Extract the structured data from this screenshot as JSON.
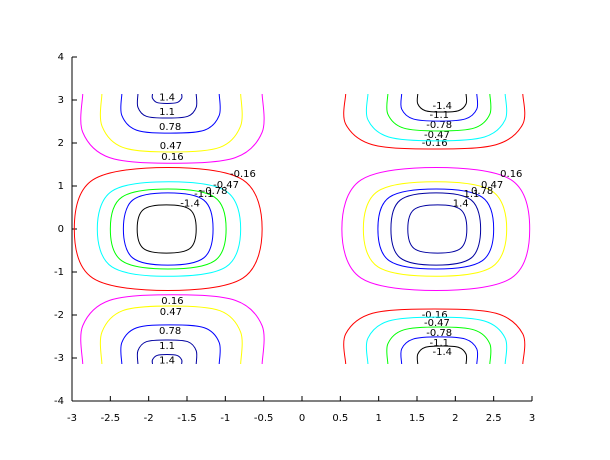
{
  "chart_data": {
    "type": "contour",
    "xlim": [
      -3,
      3
    ],
    "xticks": [
      -3,
      -2.5,
      -2,
      -1.5,
      -1,
      -0.5,
      0,
      0.5,
      1,
      1.5,
      2,
      2.5,
      3
    ],
    "ylim": [
      -4,
      4
    ],
    "yticks": [
      -4,
      -3,
      -2,
      -1,
      0,
      1,
      2,
      3,
      4
    ],
    "contours": [
      {
        "level": -0.16,
        "color": "#ff0000",
        "closed": true,
        "x": [
          -0.77,
          -0.52,
          -0.77,
          -1.75,
          -2.73,
          -2.97,
          -2.73,
          -1.75
        ],
        "y": [
          1.14,
          0,
          -1.14,
          -1.43,
          -1.14,
          0,
          1.14,
          1.43
        ]
      },
      {
        "level": -0.47,
        "color": "#00ffff",
        "closed": true,
        "x": [
          -0.99,
          -0.8,
          -0.99,
          -1.74,
          -2.48,
          -2.67,
          -2.48,
          -1.74
        ],
        "y": [
          0.88,
          0,
          -0.88,
          -1.1,
          -0.88,
          0,
          0.88,
          1.1
        ]
      },
      {
        "level": -0.78,
        "color": "#00ff00",
        "closed": true,
        "x": [
          -1.14,
          -0.99,
          -1.14,
          -1.75,
          -2.35,
          -2.5,
          -2.35,
          -1.75
        ],
        "y": [
          0.74,
          0,
          -0.74,
          -0.93,
          -0.74,
          0,
          0.74,
          0.93
        ]
      },
      {
        "level": -1.1,
        "color": "#0000ff",
        "closed": true,
        "x": [
          -1.28,
          -1.16,
          -1.28,
          -1.75,
          -2.21,
          -2.33,
          -2.21,
          -1.75
        ],
        "y": [
          0.67,
          0,
          -0.67,
          -0.84,
          -0.67,
          0,
          0.67,
          0.84
        ]
      },
      {
        "level": -1.4,
        "color": "#000000",
        "closed": true,
        "x": [
          -1.46,
          -1.38,
          -1.46,
          -1.77,
          -2.07,
          -2.15,
          -2.07,
          -1.77
        ],
        "y": [
          0.45,
          0,
          -0.45,
          -0.56,
          -0.45,
          0,
          0.45,
          0.56
        ]
      },
      {
        "level": 0.16,
        "color": "#ff00ff",
        "closed": true,
        "x": [
          2.73,
          2.97,
          2.73,
          1.75,
          0.77,
          0.52,
          0.77,
          1.75
        ],
        "y": [
          1.14,
          0,
          -1.14,
          -1.43,
          -1.14,
          0,
          1.14,
          1.43
        ]
      },
      {
        "level": 0.47,
        "color": "#ffff00",
        "closed": true,
        "x": [
          2.48,
          2.67,
          2.48,
          1.74,
          0.99,
          0.8,
          0.99,
          1.74
        ],
        "y": [
          0.88,
          0,
          -0.88,
          -1.1,
          -0.88,
          0,
          0.88,
          1.1
        ]
      },
      {
        "level": 0.78,
        "color": "#0000ff",
        "closed": true,
        "x": [
          2.35,
          2.5,
          2.35,
          1.75,
          1.14,
          0.99,
          1.14,
          1.75
        ],
        "y": [
          0.74,
          0,
          -0.74,
          -0.93,
          -0.74,
          0,
          0.74,
          0.93
        ]
      },
      {
        "level": 1.1,
        "color": "#0000a0",
        "closed": true,
        "x": [
          2.21,
          2.33,
          2.21,
          1.75,
          1.28,
          1.16,
          1.28,
          1.75
        ],
        "y": [
          0.67,
          0,
          -0.67,
          -0.84,
          -0.67,
          0,
          0.67,
          0.84
        ]
      },
      {
        "level": 1.4,
        "color": "#0000a0",
        "closed": true,
        "x": [
          2.07,
          2.15,
          2.07,
          1.77,
          1.46,
          1.38,
          1.46,
          1.77
        ],
        "y": [
          0.45,
          0,
          -0.45,
          -0.56,
          -0.45,
          0,
          0.45,
          0.56
        ]
      },
      {
        "level": 0.16,
        "color": "#ff00ff",
        "closed": false,
        "x": [
          -2.86,
          -2.86,
          -2.51,
          -1.69,
          -0.87,
          -0.52,
          -0.52
        ],
        "y": [
          3.14,
          2.25,
          1.66,
          1.53,
          1.66,
          2.25,
          3.14
        ]
      },
      {
        "level": 0.47,
        "color": "#ffff00",
        "closed": false,
        "x": [
          -2.61,
          -2.61,
          -2.34,
          -1.71,
          -1.07,
          -0.8,
          -0.8
        ],
        "y": [
          3.14,
          2.4,
          1.9,
          1.79,
          1.9,
          2.4,
          3.14
        ]
      },
      {
        "level": 0.78,
        "color": "#0000ff",
        "closed": false,
        "x": [
          -2.35,
          -2.35,
          -2.16,
          -1.72,
          -1.27,
          -1.08,
          -1.08
        ],
        "y": [
          3.14,
          2.64,
          2.3,
          2.23,
          2.3,
          2.64,
          3.14
        ]
      },
      {
        "level": 1.1,
        "color": "#0000a0",
        "closed": false,
        "x": [
          -2.14,
          -2.14,
          -2.03,
          -1.76,
          -1.49,
          -1.38,
          -1.38
        ],
        "y": [
          3.14,
          2.83,
          2.62,
          2.58,
          2.62,
          2.83,
          3.14
        ]
      },
      {
        "level": 1.4,
        "color": "#0000a0",
        "closed": false,
        "x": [
          -1.95,
          -1.95,
          -1.89,
          -1.76,
          -1.63,
          -1.57,
          -1.57
        ],
        "y": [
          3.14,
          3.04,
          2.94,
          2.92,
          2.94,
          3.04,
          3.14
        ]
      },
      {
        "level": -0.16,
        "color": "#ff0000",
        "closed": false,
        "x": [
          0.57,
          0.57,
          0.92,
          1.73,
          2.53,
          2.88,
          2.88
        ],
        "y": [
          3.14,
          2.44,
          1.96,
          1.86,
          1.96,
          2.44,
          3.14
        ]
      },
      {
        "level": -0.47,
        "color": "#00ffff",
        "closed": false,
        "x": [
          0.86,
          0.86,
          1.13,
          1.76,
          2.38,
          2.65,
          2.65
        ],
        "y": [
          3.14,
          2.54,
          2.14,
          2.05,
          2.14,
          2.54,
          3.14
        ]
      },
      {
        "level": -0.78,
        "color": "#00ff00",
        "closed": false,
        "x": [
          1.12,
          1.12,
          1.32,
          1.79,
          2.25,
          2.45,
          2.45
        ],
        "y": [
          3.14,
          2.67,
          2.35,
          2.28,
          2.35,
          2.67,
          3.14
        ]
      },
      {
        "level": -1.1,
        "color": "#0000ff",
        "closed": false,
        "x": [
          1.3,
          1.3,
          1.45,
          1.79,
          2.13,
          2.28,
          2.28
        ],
        "y": [
          3.14,
          2.79,
          2.56,
          2.51,
          2.56,
          2.79,
          3.14
        ]
      },
      {
        "level": -1.4,
        "color": "#000000",
        "closed": false,
        "x": [
          1.51,
          1.51,
          1.61,
          1.83,
          2.04,
          2.14,
          2.14
        ],
        "y": [
          3.14,
          2.91,
          2.75,
          2.72,
          2.75,
          2.91,
          3.14
        ]
      },
      {
        "level": 0.16,
        "color": "#ff00ff",
        "closed": false,
        "x": [
          -2.86,
          -2.86,
          -2.51,
          -1.69,
          -0.87,
          -0.52,
          -0.52
        ],
        "y": [
          -3.14,
          -2.25,
          -1.66,
          -1.53,
          -1.66,
          -2.25,
          -3.14
        ]
      },
      {
        "level": 0.47,
        "color": "#ffff00",
        "closed": false,
        "x": [
          -2.61,
          -2.61,
          -2.34,
          -1.71,
          -1.07,
          -0.8,
          -0.8
        ],
        "y": [
          -3.14,
          -2.4,
          -1.9,
          -1.79,
          -1.9,
          -2.4,
          -3.14
        ]
      },
      {
        "level": 0.78,
        "color": "#0000ff",
        "closed": false,
        "x": [
          -2.35,
          -2.35,
          -2.16,
          -1.72,
          -1.27,
          -1.08,
          -1.08
        ],
        "y": [
          -3.14,
          -2.64,
          -2.3,
          -2.23,
          -2.3,
          -2.64,
          -3.14
        ]
      },
      {
        "level": 1.1,
        "color": "#0000a0",
        "closed": false,
        "x": [
          -2.14,
          -2.14,
          -2.03,
          -1.76,
          -1.49,
          -1.38,
          -1.38
        ],
        "y": [
          -3.14,
          -2.83,
          -2.62,
          -2.58,
          -2.62,
          -2.83,
          -3.14
        ]
      },
      {
        "level": 1.4,
        "color": "#0000a0",
        "closed": false,
        "x": [
          -1.95,
          -1.95,
          -1.89,
          -1.76,
          -1.63,
          -1.57,
          -1.57
        ],
        "y": [
          -3.14,
          -3.04,
          -2.94,
          -2.92,
          -2.94,
          -3.04,
          -3.14
        ]
      },
      {
        "level": -0.16,
        "color": "#ff0000",
        "closed": false,
        "x": [
          0.57,
          0.57,
          0.92,
          1.73,
          2.53,
          2.88,
          2.88
        ],
        "y": [
          -3.14,
          -2.44,
          -1.96,
          -1.86,
          -1.96,
          -2.44,
          -3.14
        ]
      },
      {
        "level": -0.47,
        "color": "#00ffff",
        "closed": false,
        "x": [
          0.86,
          0.86,
          1.13,
          1.76,
          2.38,
          2.65,
          2.65
        ],
        "y": [
          -3.14,
          -2.54,
          -2.14,
          -2.05,
          -2.14,
          -2.54,
          -3.14
        ]
      },
      {
        "level": -0.78,
        "color": "#00ff00",
        "closed": false,
        "x": [
          1.12,
          1.12,
          1.32,
          1.79,
          2.25,
          2.45,
          2.45
        ],
        "y": [
          -3.14,
          -2.67,
          -2.35,
          -2.28,
          -2.35,
          -2.67,
          -3.14
        ]
      },
      {
        "level": -1.1,
        "color": "#0000ff",
        "closed": false,
        "x": [
          1.3,
          1.3,
          1.45,
          1.79,
          2.13,
          2.28,
          2.28
        ],
        "y": [
          -3.14,
          -2.79,
          -2.56,
          -2.51,
          -2.56,
          -2.79,
          -3.14
        ]
      },
      {
        "level": -1.4,
        "color": "#000000",
        "closed": false,
        "x": [
          1.51,
          1.51,
          1.61,
          1.83,
          2.04,
          2.14,
          2.14
        ],
        "y": [
          -3.14,
          -2.91,
          -2.75,
          -2.72,
          -2.75,
          -2.91,
          -3.14
        ]
      }
    ]
  }
}
